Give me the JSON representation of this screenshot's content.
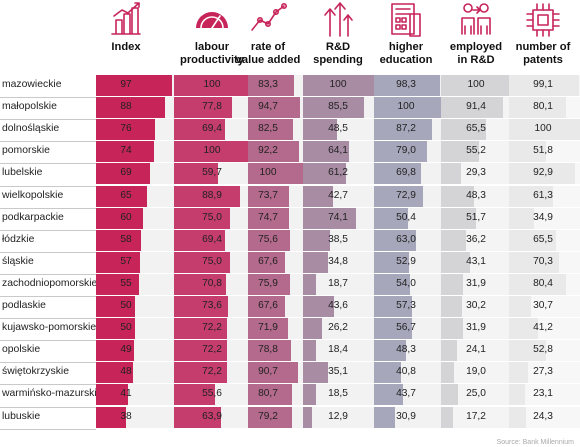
{
  "chart_data": {
    "type": "table",
    "columns": [
      {
        "key": "index",
        "label": [
          "Index"
        ],
        "icon": "building-chart-icon",
        "color": "#c7245a",
        "track": "#f2f2f2"
      },
      {
        "key": "labour_productivity",
        "label": [
          "labour",
          "productivity"
        ],
        "icon": "gauge-icon",
        "color": "#c43d6c",
        "track": "#f2f2f2"
      },
      {
        "key": "rate_of_value_added",
        "label": [
          "rate of",
          "value added"
        ],
        "icon": "line-growth-icon",
        "color": "#b46a8c",
        "track": "#f2f2f2"
      },
      {
        "key": "rd_spending",
        "label": [
          "R&D",
          "spending"
        ],
        "icon": "rising-arrows-icon",
        "color": "#a88ca4",
        "track": "#f2f2f2"
      },
      {
        "key": "higher_education",
        "label": [
          "higher",
          "education"
        ],
        "icon": "calculator-document-icon",
        "color": "#a7a7bb",
        "track": "#f2f2f2"
      },
      {
        "key": "employed_in_rd",
        "label": [
          "employed",
          "in R&D"
        ],
        "icon": "two-people-icon",
        "color": "#d4d4d7",
        "track": "#f4f4f4"
      },
      {
        "key": "number_of_patents",
        "label": [
          "number of",
          "patents"
        ],
        "icon": "chip-icon",
        "color": "#e9e9e9",
        "track": "#f7f7f7"
      }
    ],
    "rows": [
      {
        "region": "mazowieckie",
        "values": [
          "97",
          "100",
          "83,3",
          "100",
          "98,3",
          "100",
          "99,1"
        ]
      },
      {
        "region": "małopolskie",
        "values": [
          "88",
          "77,8",
          "94,7",
          "85,5",
          "100",
          "91,4",
          "80,1"
        ]
      },
      {
        "region": "dolnośląskie",
        "values": [
          "76",
          "69,4",
          "82,5",
          "48,5",
          "87,2",
          "65,5",
          "100"
        ]
      },
      {
        "region": "pomorskie",
        "values": [
          "74",
          "100",
          "92,2",
          "64,1",
          "79,0",
          "55,2",
          "51,8"
        ]
      },
      {
        "region": "lubelskie",
        "values": [
          "69",
          "59,7",
          "100",
          "61,2",
          "69,8",
          "29,3",
          "92,9"
        ]
      },
      {
        "region": "wielkopolskie",
        "values": [
          "65",
          "88,9",
          "73,7",
          "42,7",
          "72,9",
          "48,3",
          "61,3"
        ]
      },
      {
        "region": "podkarpackie",
        "values": [
          "60",
          "75,0",
          "74,7",
          "74,1",
          "50,4",
          "51,7",
          "34,9"
        ]
      },
      {
        "region": "łódzkie",
        "values": [
          "58",
          "69,4",
          "75,6",
          "38,5",
          "63,0",
          "36,2",
          "65,5"
        ]
      },
      {
        "region": "śląskie",
        "values": [
          "57",
          "75,0",
          "67,6",
          "34,8",
          "52,9",
          "43,1",
          "70,3"
        ]
      },
      {
        "region": "zachodniopomorskie",
        "values": [
          "55",
          "70,8",
          "75,9",
          "18,7",
          "54,0",
          "31,9",
          "80,4"
        ]
      },
      {
        "region": "podlaskie",
        "values": [
          "50",
          "73,6",
          "67,6",
          "43,6",
          "57,3",
          "30,2",
          "30,7"
        ]
      },
      {
        "region": "kujawsko-pomorskie",
        "values": [
          "50",
          "72,2",
          "71,9",
          "26,2",
          "56,7",
          "31,9",
          "41,2"
        ]
      },
      {
        "region": "opolskie",
        "values": [
          "49",
          "72,2",
          "78,8",
          "18,4",
          "48,3",
          "24,1",
          "52,8"
        ]
      },
      {
        "region": "świętokrzyskie",
        "values": [
          "48",
          "72,2",
          "90,7",
          "35,1",
          "40,8",
          "19,0",
          "27,3"
        ]
      },
      {
        "region": "warmińsko-mazurskie",
        "values": [
          "41",
          "55,6",
          "80,7",
          "18,5",
          "43,7",
          "25,0",
          "23,1"
        ]
      },
      {
        "region": "lubuskie",
        "values": [
          "38",
          "63,9",
          "79,2",
          "12,9",
          "30,9",
          "17,2",
          "24,3"
        ]
      }
    ],
    "source": "Source: Bank Millennium"
  }
}
